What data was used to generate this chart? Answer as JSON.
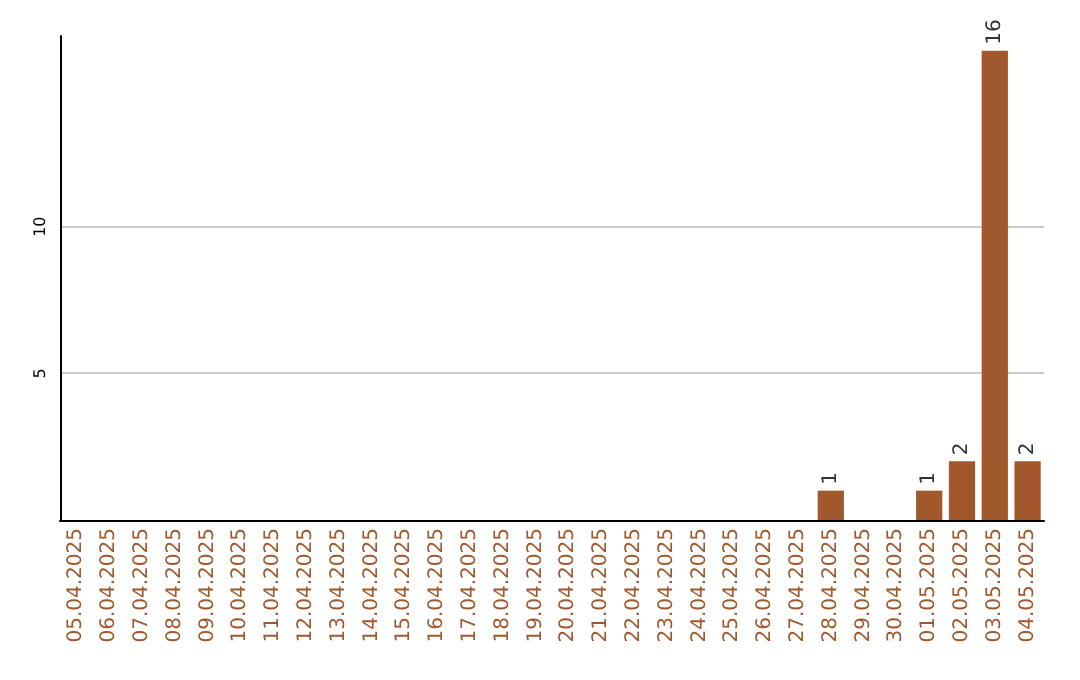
{
  "chart_data": {
    "type": "bar",
    "categories": [
      "05.04.2025",
      "06.04.2025",
      "07.04.2025",
      "08.04.2025",
      "09.04.2025",
      "10.04.2025",
      "11.04.2025",
      "12.04.2025",
      "13.04.2025",
      "14.04.2025",
      "15.04.2025",
      "16.04.2025",
      "17.04.2025",
      "18.04.2025",
      "19.04.2025",
      "20.04.2025",
      "21.04.2025",
      "22.04.2025",
      "23.04.2025",
      "24.04.2025",
      "25.04.2025",
      "26.04.2025",
      "27.04.2025",
      "28.04.2025",
      "29.04.2025",
      "30.04.2025",
      "01.05.2025",
      "02.05.2025",
      "03.05.2025",
      "04.05.2025"
    ],
    "values": [
      0,
      0,
      0,
      0,
      0,
      0,
      0,
      0,
      0,
      0,
      0,
      0,
      0,
      0,
      0,
      0,
      0,
      0,
      0,
      0,
      0,
      0,
      0,
      1,
      0,
      0,
      1,
      2,
      16,
      2
    ],
    "value_labels": [
      null,
      null,
      null,
      null,
      null,
      null,
      null,
      null,
      null,
      null,
      null,
      null,
      null,
      null,
      null,
      null,
      null,
      null,
      null,
      null,
      null,
      null,
      null,
      "1",
      null,
      null,
      "1",
      "2",
      "16",
      "2"
    ],
    "color": "#a0582c",
    "ylim": [
      0,
      16.5
    ],
    "yticks": [
      5,
      10
    ],
    "grid": "y"
  }
}
